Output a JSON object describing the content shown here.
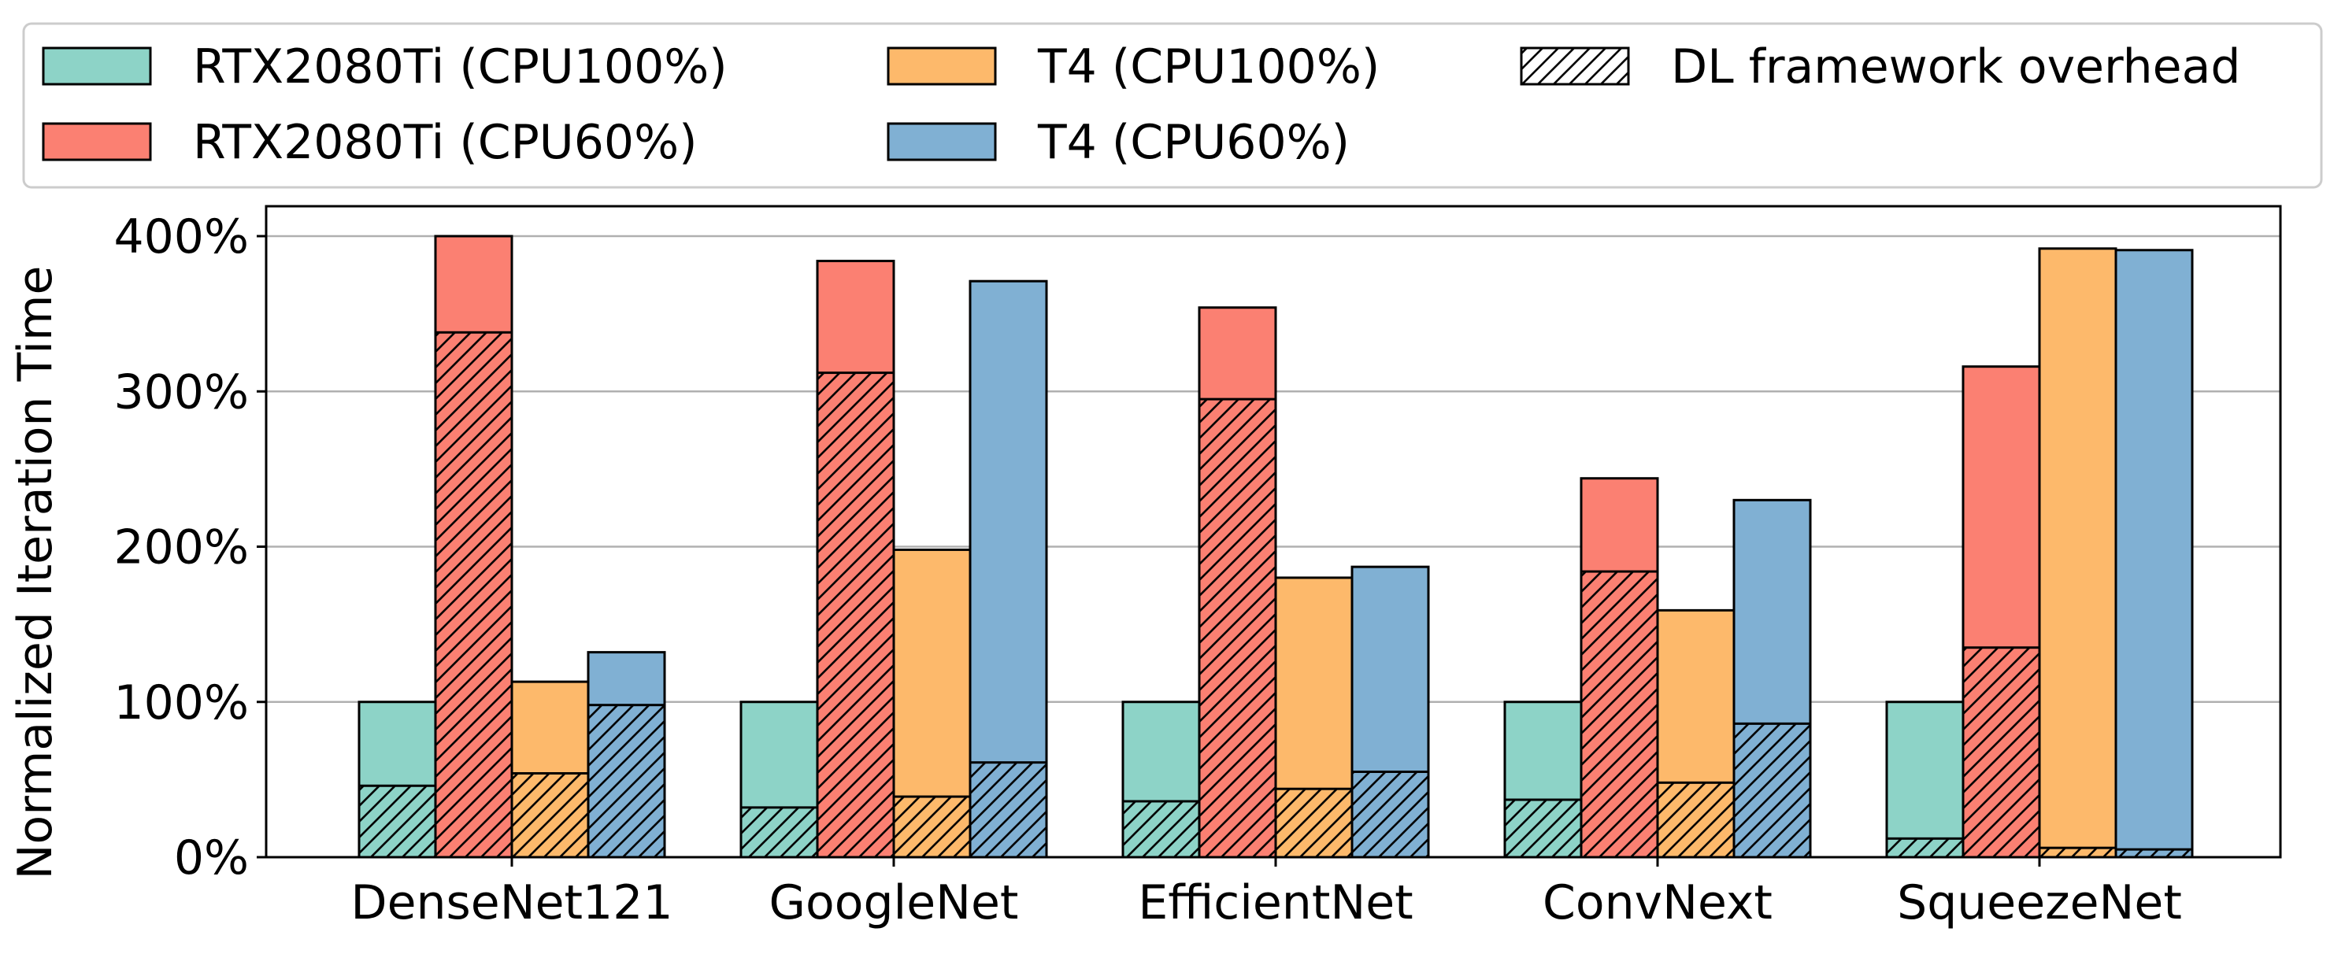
{
  "chart_data": {
    "type": "bar",
    "subtype": "grouped-stacked",
    "ylabel": "Normalized Iteration Time",
    "xlabel": "",
    "ylim": [
      0,
      400
    ],
    "yticks": [
      0,
      100,
      200,
      300,
      400
    ],
    "ytick_labels": [
      "0%",
      "100%",
      "200%",
      "300%",
      "400%"
    ],
    "grid": "horizontal",
    "legend_position": "top",
    "categories": [
      "DenseNet121",
      "GoogleNet",
      "EfficientNet",
      "ConvNext",
      "SqueezeNet"
    ],
    "series": [
      {
        "name": "RTX2080Ti (CPU100%)",
        "color": "#8dd3c7",
        "total": [
          100,
          100,
          100,
          100,
          100
        ],
        "overhead": [
          46,
          32,
          36,
          37,
          12
        ]
      },
      {
        "name": "RTX2080Ti (CPU60%)",
        "color": "#fb8072",
        "total": [
          400,
          384,
          354,
          244,
          316
        ],
        "overhead": [
          338,
          312,
          295,
          184,
          135
        ]
      },
      {
        "name": "T4 (CPU100%)",
        "color": "#fdb96b",
        "total": [
          113,
          198,
          180,
          159,
          392
        ],
        "overhead": [
          54,
          39,
          44,
          48,
          6
        ]
      },
      {
        "name": "T4 (CPU60%)",
        "color": "#80b0d3",
        "total": [
          132,
          371,
          187,
          230,
          391
        ],
        "overhead": [
          98,
          61,
          55,
          86,
          5
        ]
      }
    ],
    "hatch_legend_label": "DL framework overhead",
    "legend_order": [
      0,
      2,
      "hatch",
      1,
      3
    ]
  }
}
